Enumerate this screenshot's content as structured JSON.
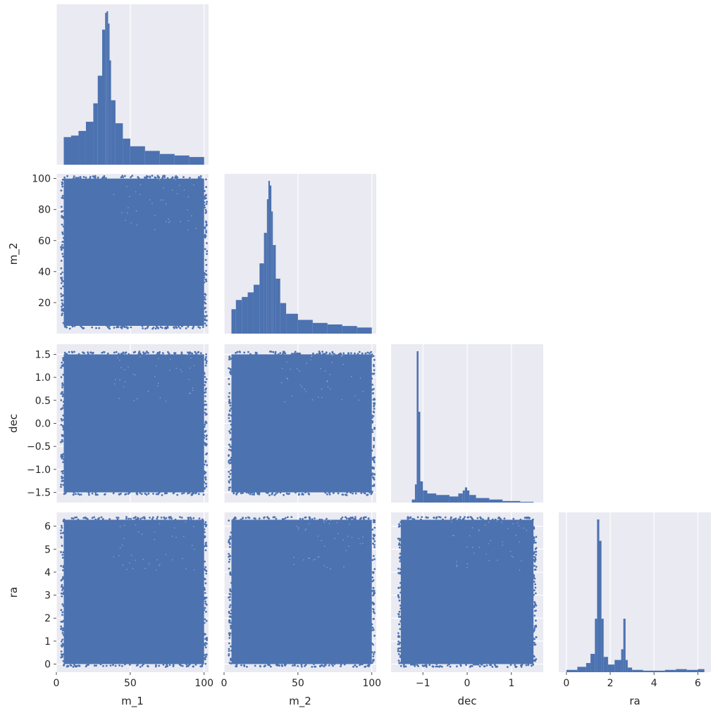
{
  "chart_data": {
    "type": "pairplot",
    "layout": "corner",
    "grid": true,
    "style": {
      "panel_bg": "#eaeaf2",
      "grid_color": "#ffffff",
      "mark_color": "#4c72b0"
    },
    "variables": [
      {
        "key": "m_1",
        "label": "m_1",
        "range": [
          0,
          103
        ],
        "ticks": [
          0,
          50,
          100
        ],
        "tick_labels": [
          "0",
          "50",
          "100"
        ]
      },
      {
        "key": "m_2",
        "label": "m_2",
        "range": [
          0,
          103
        ],
        "ticks": [
          20,
          40,
          60,
          80,
          100
        ],
        "tick_labels": [
          "20",
          "40",
          "60",
          "80",
          "100"
        ]
      },
      {
        "key": "dec",
        "label": "dec",
        "range": [
          -1.72,
          1.72
        ],
        "ticks": [
          -1.5,
          -1.0,
          -0.5,
          0.0,
          0.5,
          1.0,
          1.5
        ],
        "tick_labels": [
          "−1.5",
          "−1.0",
          "−0.5",
          "0.0",
          "0.5",
          "1.0",
          "1.5"
        ]
      },
      {
        "key": "ra",
        "label": "ra",
        "range": [
          -0.35,
          6.6
        ],
        "ticks": [
          0,
          1,
          2,
          3,
          4,
          5,
          6
        ],
        "tick_labels": [
          "0",
          "1",
          "2",
          "3",
          "4",
          "5",
          "6"
        ]
      }
    ],
    "x_axis_ticks": {
      "m_1": {
        "ticks": [
          0,
          50,
          100
        ],
        "tick_labels": [
          "0",
          "50",
          "100"
        ]
      },
      "m_2": {
        "ticks": [
          0,
          50,
          100
        ],
        "tick_labels": [
          "0",
          "50",
          "100"
        ]
      },
      "dec": {
        "ticks": [
          -1,
          0,
          1
        ],
        "tick_labels": [
          "−1",
          "0",
          "1"
        ]
      },
      "ra": {
        "ticks": [
          0,
          2,
          4,
          6
        ],
        "tick_labels": [
          "0",
          "2",
          "4",
          "6"
        ]
      }
    },
    "histograms": [
      {
        "variable": "m_1",
        "bin_edges": [
          5,
          10,
          15,
          20,
          25,
          28,
          31,
          33,
          34,
          35,
          36,
          37,
          40,
          45,
          50,
          60,
          70,
          80,
          90,
          100
        ],
        "counts": [
          0.18,
          0.19,
          0.22,
          0.28,
          0.4,
          0.58,
          0.88,
          0.99,
          1.0,
          0.92,
          0.68,
          0.42,
          0.27,
          0.17,
          0.12,
          0.09,
          0.07,
          0.06,
          0.05
        ]
      },
      {
        "variable": "m_2",
        "bin_edges": [
          5,
          8,
          12,
          16,
          20,
          24,
          27,
          29,
          30,
          31,
          32,
          33,
          35,
          38,
          42,
          50,
          60,
          70,
          80,
          90,
          100
        ],
        "counts": [
          0.16,
          0.22,
          0.24,
          0.27,
          0.32,
          0.46,
          0.66,
          0.88,
          1.0,
          0.97,
          0.8,
          0.58,
          0.36,
          0.2,
          0.13,
          0.09,
          0.07,
          0.06,
          0.05,
          0.04
        ]
      },
      {
        "variable": "dec",
        "bin_edges": [
          -1.45,
          -1.25,
          -1.18,
          -1.14,
          -1.1,
          -1.06,
          -1.0,
          -0.9,
          -0.7,
          -0.4,
          -0.2,
          -0.1,
          -0.05,
          0.0,
          0.05,
          0.2,
          0.5,
          0.8,
          1.2,
          1.5
        ],
        "counts": [
          0.0,
          0.02,
          0.12,
          1.0,
          0.6,
          0.14,
          0.08,
          0.06,
          0.05,
          0.04,
          0.06,
          0.08,
          0.1,
          0.08,
          0.05,
          0.03,
          0.02,
          0.01,
          0.005
        ]
      },
      {
        "variable": "ra",
        "bin_edges": [
          0,
          0.5,
          0.9,
          1.1,
          1.3,
          1.4,
          1.5,
          1.6,
          1.7,
          1.9,
          2.2,
          2.5,
          2.6,
          2.7,
          2.8,
          3.0,
          3.5,
          4.5,
          5.0,
          5.5,
          6.0,
          6.3
        ],
        "counts": [
          0.015,
          0.035,
          0.06,
          0.12,
          0.35,
          1.0,
          0.86,
          0.35,
          0.1,
          0.05,
          0.08,
          0.15,
          0.35,
          0.08,
          0.03,
          0.015,
          0.01,
          0.015,
          0.02,
          0.015,
          0.02
        ]
      }
    ],
    "scatter": [
      {
        "x": "m_1",
        "y": "m_2",
        "x_span": [
          5,
          100
        ],
        "y_span": [
          5,
          100
        ]
      },
      {
        "x": "m_1",
        "y": "dec",
        "x_span": [
          5,
          100
        ],
        "y_span": [
          -1.5,
          1.5
        ]
      },
      {
        "x": "m_2",
        "y": "dec",
        "x_span": [
          5,
          100
        ],
        "y_span": [
          -1.5,
          1.5
        ]
      },
      {
        "x": "m_1",
        "y": "ra",
        "x_span": [
          5,
          100
        ],
        "y_span": [
          0,
          6.28
        ]
      },
      {
        "x": "m_2",
        "y": "ra",
        "x_span": [
          5,
          100
        ],
        "y_span": [
          0,
          6.28
        ]
      },
      {
        "x": "dec",
        "y": "ra",
        "x_span": [
          -1.5,
          1.5
        ],
        "y_span": [
          0,
          6.28
        ]
      }
    ]
  }
}
